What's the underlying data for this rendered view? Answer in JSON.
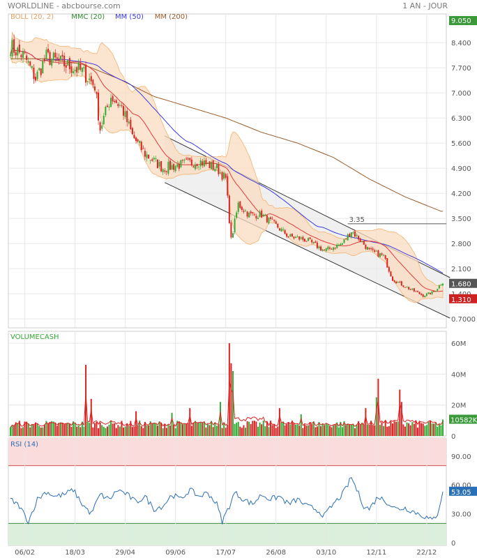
{
  "header": {
    "left": "WORLDLINE - abcbourse.com",
    "right": "1 AN - JOUR"
  },
  "colors": {
    "up": "#33aa33",
    "down": "#dd2222",
    "boll_fill": "#fbdcc0",
    "boll_line": "#f5b26b",
    "mmc20": "#e23a3a",
    "mm50": "#3a3ae0",
    "mm200": "#9b5b2a",
    "rsi": "#2a6fb5",
    "grid": "#e6e6e6"
  },
  "chart_data": [
    {
      "type": "candlestick",
      "title": "WORLDLINE",
      "legend": [
        {
          "label": "BOLL (20, 2)",
          "color": "#e8a060"
        },
        {
          "label": "MMC (20)",
          "color": "#2e8b2e"
        },
        {
          "label": "MM (50)",
          "color": "#3a3ae0"
        },
        {
          "label": "MM (200)",
          "color": "#9b5b2a"
        }
      ],
      "y_ticks": [
        "9.050",
        "8.400",
        "7.700",
        "7.000",
        "6.300",
        "5.600",
        "4.900",
        "4.200",
        "3.500",
        "2.800",
        "2.100",
        "1.400",
        "0.7000"
      ],
      "ylim": [
        0.45,
        9.2
      ],
      "x_ticks": [
        "06/02",
        "18/03",
        "29/04",
        "09/06",
        "17/07",
        "26/08",
        "03/10",
        "12/11",
        "22/12"
      ],
      "price_anchors": [
        [
          0,
          8.3
        ],
        [
          8,
          8.0
        ],
        [
          14,
          7.4
        ],
        [
          20,
          8.0
        ],
        [
          30,
          7.8
        ],
        [
          40,
          7.6
        ],
        [
          47,
          7.2
        ],
        [
          50,
          6.0
        ],
        [
          56,
          6.9
        ],
        [
          62,
          6.6
        ],
        [
          68,
          5.8
        ],
        [
          75,
          5.3
        ],
        [
          85,
          4.9
        ],
        [
          95,
          5.0
        ],
        [
          105,
          5.1
        ],
        [
          115,
          4.9
        ],
        [
          120,
          4.6
        ],
        [
          123,
          2.9
        ],
        [
          127,
          3.9
        ],
        [
          133,
          3.6
        ],
        [
          140,
          3.6
        ],
        [
          148,
          3.3
        ],
        [
          155,
          3.0
        ],
        [
          165,
          2.9
        ],
        [
          175,
          2.6
        ],
        [
          185,
          2.8
        ],
        [
          190,
          3.15
        ],
        [
          195,
          2.9
        ],
        [
          200,
          2.6
        ],
        [
          208,
          2.45
        ],
        [
          213,
          1.8
        ],
        [
          220,
          1.6
        ],
        [
          230,
          1.35
        ],
        [
          236,
          1.45
        ],
        [
          240,
          1.68
        ]
      ],
      "mm200_anchors": [
        [
          0,
          7.95
        ],
        [
          20,
          7.95
        ],
        [
          40,
          7.8
        ],
        [
          60,
          7.4
        ],
        [
          80,
          6.9
        ],
        [
          100,
          6.6
        ],
        [
          120,
          6.3
        ],
        [
          140,
          5.9
        ],
        [
          160,
          5.6
        ],
        [
          180,
          5.2
        ],
        [
          200,
          4.6
        ],
        [
          220,
          4.1
        ],
        [
          240,
          3.7
        ]
      ],
      "channel": {
        "upper": [
          [
            86,
            5.8
          ],
          [
            245,
            1.85
          ]
        ],
        "lower": [
          [
            86,
            4.5
          ],
          [
            245,
            0.72
          ]
        ]
      },
      "resistance": {
        "value": 3.35,
        "label": "3.35"
      },
      "last_price": {
        "value": 1.68,
        "label": "1.680"
      },
      "high_label": "9.050",
      "low_label": "1.310",
      "low_value": 1.31
    },
    {
      "type": "bar",
      "title": "VOLUMECASH",
      "y_ticks": [
        "60M",
        "40M",
        "20M",
        "0"
      ],
      "ylim": [
        0,
        65
      ],
      "base_volume": 5,
      "spikes": [
        [
          42,
          46
        ],
        [
          122,
          60
        ],
        [
          123,
          47
        ],
        [
          124,
          42
        ],
        [
          45,
          24
        ],
        [
          117,
          22
        ],
        [
          198,
          18
        ],
        [
          205,
          37
        ],
        [
          204,
          25
        ],
        [
          217,
          30
        ],
        [
          218,
          22
        ],
        [
          150,
          18
        ],
        [
          162,
          14
        ],
        [
          70,
          16
        ],
        [
          90,
          15
        ],
        [
          100,
          18
        ]
      ],
      "last_value": {
        "value": 10.582,
        "label": "10582K"
      }
    },
    {
      "type": "line",
      "title": "RSI (14)",
      "y_ticks": [
        "90.00",
        "60.00",
        "30.00",
        "0"
      ],
      "ylim": [
        0,
        100
      ],
      "overbought": 80,
      "oversold": 20,
      "rsi_anchors": [
        [
          0,
          45
        ],
        [
          5,
          38
        ],
        [
          10,
          22
        ],
        [
          15,
          45
        ],
        [
          20,
          53
        ],
        [
          25,
          48
        ],
        [
          30,
          50
        ],
        [
          35,
          55
        ],
        [
          40,
          40
        ],
        [
          45,
          30
        ],
        [
          50,
          50
        ],
        [
          55,
          45
        ],
        [
          60,
          55
        ],
        [
          65,
          50
        ],
        [
          70,
          42
        ],
        [
          75,
          48
        ],
        [
          80,
          35
        ],
        [
          85,
          38
        ],
        [
          90,
          50
        ],
        [
          95,
          45
        ],
        [
          100,
          55
        ],
        [
          105,
          48
        ],
        [
          110,
          52
        ],
        [
          115,
          40
        ],
        [
          118,
          22
        ],
        [
          122,
          38
        ],
        [
          125,
          52
        ],
        [
          130,
          45
        ],
        [
          135,
          40
        ],
        [
          140,
          50
        ],
        [
          145,
          45
        ],
        [
          150,
          48
        ],
        [
          155,
          40
        ],
        [
          160,
          45
        ],
        [
          165,
          38
        ],
        [
          170,
          35
        ],
        [
          175,
          28
        ],
        [
          180,
          40
        ],
        [
          185,
          50
        ],
        [
          188,
          60
        ],
        [
          190,
          68
        ],
        [
          193,
          55
        ],
        [
          197,
          38
        ],
        [
          200,
          35
        ],
        [
          205,
          48
        ],
        [
          210,
          42
        ],
        [
          215,
          35
        ],
        [
          220,
          36
        ],
        [
          225,
          32
        ],
        [
          230,
          28
        ],
        [
          235,
          23
        ],
        [
          238,
          30
        ],
        [
          241,
          53
        ]
      ],
      "last_value": {
        "value": 53.05,
        "label": "53.05"
      }
    }
  ]
}
